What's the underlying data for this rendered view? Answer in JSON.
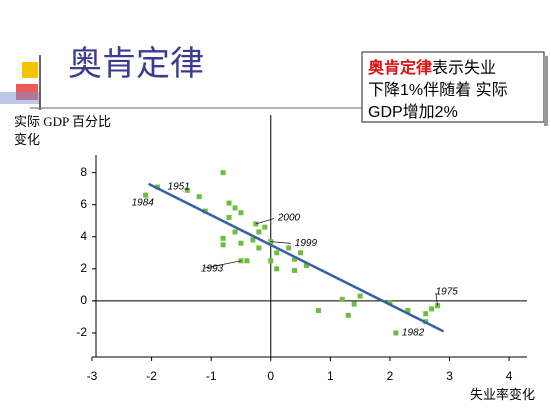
{
  "chart_data": {
    "type": "scatter",
    "title": "奥肯定律",
    "note": {
      "highlight": "奥肯定律",
      "lines": [
        "表示失业",
        "下降1%伴随着 实际",
        "GDP增加2%"
      ]
    },
    "ylabel": [
      "实际 GDP 百分比",
      "变化"
    ],
    "xlabel": "失业率变化",
    "color": "#6bbf3a",
    "x": [
      -1.9,
      -2.1,
      -1.4,
      -1.2,
      -1.1,
      -0.8,
      -0.7,
      -0.6,
      -0.7,
      -0.5,
      -0.8,
      -0.8,
      -0.6,
      -0.5,
      -0.5,
      -0.4,
      -0.25,
      -0.2,
      -0.1,
      -0.3,
      -0.2,
      0.0,
      0.1,
      0.0,
      0.1,
      0.3,
      0.4,
      0.5,
      0.4,
      0.6,
      0.8,
      1.3,
      1.2,
      1.4,
      1.5,
      2.0,
      2.3,
      2.6,
      2.7,
      2.8,
      2.1,
      2.6
    ],
    "y": [
      7.1,
      6.6,
      6.9,
      6.5,
      5.6,
      8.0,
      6.1,
      5.8,
      5.2,
      5.5,
      3.9,
      3.5,
      4.3,
      3.6,
      2.5,
      2.5,
      4.8,
      4.3,
      4.6,
      3.8,
      3.3,
      3.7,
      3.0,
      2.5,
      2.0,
      3.3,
      2.6,
      3.0,
      1.9,
      2.2,
      -0.6,
      -0.9,
      0.1,
      -0.2,
      0.3,
      -0.1,
      -0.6,
      -0.8,
      -0.5,
      -0.3,
      -2.0,
      -1.3
    ],
    "fit": {
      "color": "#3a5fa8",
      "x": [
        -2.05,
        2.9
      ],
      "y": [
        7.3,
        -1.9
      ]
    },
    "annotations": [
      {
        "text": "1951",
        "x": -1.9,
        "y": 7.1
      },
      {
        "text": "1984",
        "x": -2.1,
        "y": 6.6
      },
      {
        "text": "2000",
        "x": -0.25,
        "y": 4.8
      },
      {
        "text": "1999",
        "x": 0.0,
        "y": 3.7
      },
      {
        "text": "1993",
        "x": -0.5,
        "y": 2.5
      },
      {
        "text": "1975",
        "x": 2.8,
        "y": -0.3
      },
      {
        "text": "1982",
        "x": 2.1,
        "y": -2.0
      }
    ],
    "xlim": [
      -3,
      4.3
    ],
    "ylim": [
      -3.5,
      9.1
    ],
    "xticks": [
      -3,
      -2,
      -1,
      0,
      1,
      2,
      3,
      4
    ],
    "yticks": [
      -2,
      0,
      2,
      4,
      6,
      8
    ]
  }
}
